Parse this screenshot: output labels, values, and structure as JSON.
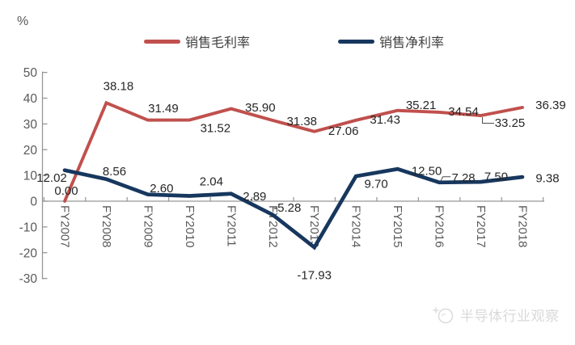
{
  "chart_data": {
    "type": "line",
    "y_unit_label": "%",
    "categories": [
      "FY2007",
      "FY2008",
      "FY2009",
      "FY2010",
      "FY2011",
      "FY2012",
      "FY2013",
      "FY2014",
      "FY2015",
      "FY2016",
      "FY2017",
      "FY2018"
    ],
    "series": [
      {
        "name": "销售毛利率",
        "color": "#c0504d",
        "values": [
          0.0,
          38.18,
          31.49,
          31.52,
          35.9,
          31.38,
          27.06,
          31.43,
          35.21,
          34.54,
          33.25,
          36.39
        ]
      },
      {
        "name": "销售净利率",
        "color": "#17375e",
        "values": [
          12.02,
          8.56,
          2.6,
          2.04,
          2.89,
          -5.28,
          -17.93,
          9.7,
          12.5,
          7.28,
          7.5,
          9.38
        ]
      }
    ],
    "ylim": [
      -30,
      50
    ],
    "ytick_step": 10,
    "grid": false,
    "legend_position": "top",
    "data_labels": true,
    "label_decimals": 2
  },
  "watermark": {
    "text": "半导体行业观察"
  },
  "colors": {
    "axis": "#969696",
    "tick_label": "#595959",
    "data_label": "#262626",
    "watermark": "#d9d9d9"
  }
}
